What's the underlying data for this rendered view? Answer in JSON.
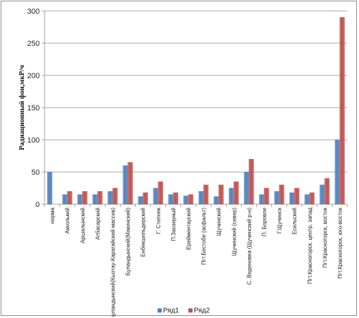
{
  "chart_data": {
    "type": "bar",
    "title": "",
    "xlabel": "",
    "ylabel": "Радиационный фон,мкР/ч",
    "ylim": [
      0,
      300
    ],
    "yticks": [
      0,
      50,
      100,
      150,
      200,
      250,
      300
    ],
    "grid": true,
    "legend_position": "bottom",
    "categories": [
      "норма",
      "Акколький",
      "Аршалынский",
      "Атбасарский",
      "Буландынский(Кызтау-Карагайский массив)",
      "Буландынский(Макинский)",
      "Енбекшильдерский",
      "Г. Степняк",
      "П.Заозерный",
      "Ерейментауский",
      "Пгт.Бестобе (асфальт)",
      "Щучинский",
      "Щучинский (север)",
      "С. Веденовка (Щучинский р-н)",
      "П. Боровое",
      "Г.Щучинск",
      "Есильский",
      "Пгт.Красногорск, центр, запад",
      "Пгт.Красногорск, восток",
      "Пгт.Красногорск, юго-восток"
    ],
    "series": [
      {
        "name": "Ряд1",
        "color": "#4f81bd",
        "values": [
          50,
          15,
          15,
          15,
          20,
          60,
          12,
          25,
          15,
          13,
          20,
          12,
          25,
          50,
          15,
          20,
          18,
          15,
          30,
          100
        ]
      },
      {
        "name": "Ряд2",
        "color": "#c0504d",
        "values": [
          null,
          20,
          20,
          20,
          25,
          65,
          18,
          35,
          18,
          15,
          30,
          30,
          35,
          70,
          25,
          30,
          25,
          18,
          40,
          290
        ]
      }
    ]
  }
}
